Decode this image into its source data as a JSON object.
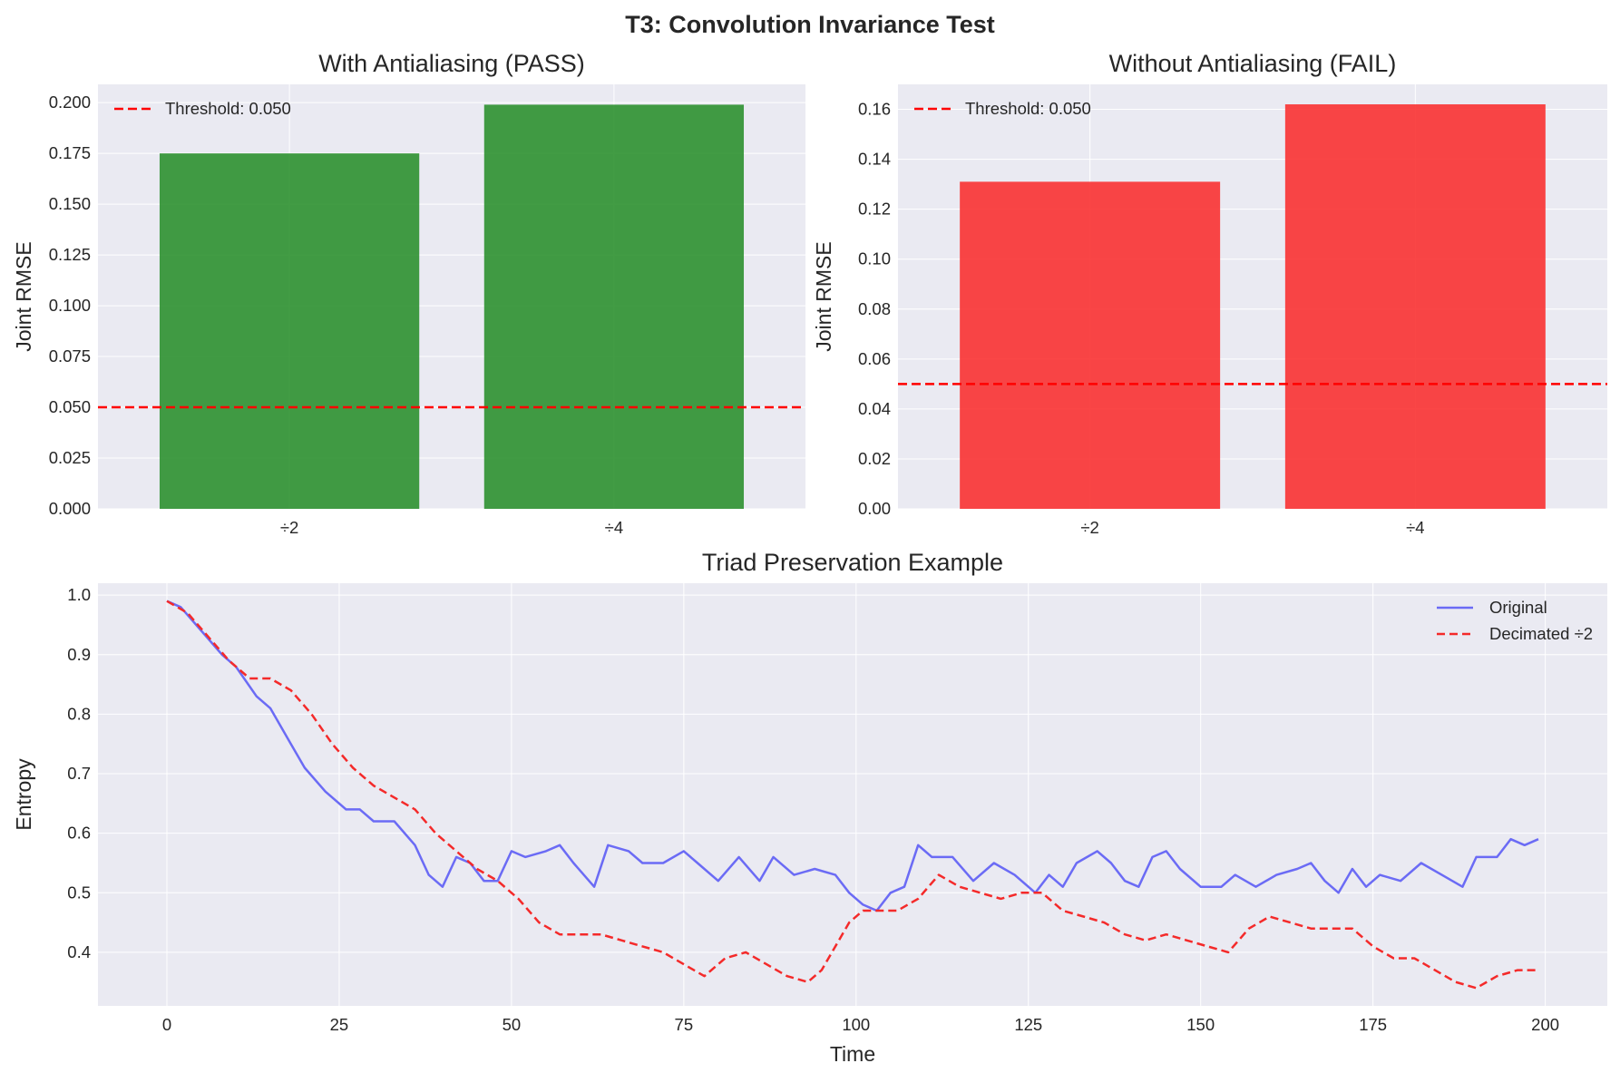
{
  "figure": {
    "suptitle": "T3: Convolution Invariance Test"
  },
  "chart_data": [
    {
      "type": "bar",
      "title": "With Antialiasing (PASS)",
      "xlabel": "",
      "ylabel": "Joint RMSE",
      "categories": [
        "÷2",
        "÷4"
      ],
      "values": [
        0.175,
        0.199
      ],
      "bar_color": "#2e9130",
      "ylim": [
        0,
        0.209
      ],
      "yticks": [
        0.0,
        0.025,
        0.05,
        0.075,
        0.1,
        0.125,
        0.15,
        0.175,
        0.2
      ],
      "ytick_labels": [
        "0.000",
        "0.025",
        "0.050",
        "0.075",
        "0.100",
        "0.125",
        "0.150",
        "0.175",
        "0.200"
      ],
      "threshold": {
        "value": 0.05,
        "label": "Threshold: 0.050",
        "color": "#ff0000"
      },
      "legend_position": "upper-left",
      "grid": true
    },
    {
      "type": "bar",
      "title": "Without Antialiasing (FAIL)",
      "xlabel": "",
      "ylabel": "Joint RMSE",
      "categories": [
        "÷2",
        "÷4"
      ],
      "values": [
        0.131,
        0.162
      ],
      "bar_color": "#f93232",
      "ylim": [
        0,
        0.17
      ],
      "yticks": [
        0.0,
        0.02,
        0.04,
        0.06,
        0.08,
        0.1,
        0.12,
        0.14,
        0.16
      ],
      "ytick_labels": [
        "0.00",
        "0.02",
        "0.04",
        "0.06",
        "0.08",
        "0.10",
        "0.12",
        "0.14",
        "0.16"
      ],
      "threshold": {
        "value": 0.05,
        "label": "Threshold: 0.050",
        "color": "#ff0000"
      },
      "legend_position": "upper-left",
      "grid": true
    },
    {
      "type": "line",
      "title": "Triad Preservation Example",
      "xlabel": "Time",
      "ylabel": "Entropy",
      "xlim": [
        -10,
        209
      ],
      "ylim": [
        0.31,
        1.02
      ],
      "xticks": [
        0,
        25,
        50,
        75,
        100,
        125,
        150,
        175,
        200
      ],
      "yticks": [
        0.4,
        0.5,
        0.6,
        0.7,
        0.8,
        0.9,
        1.0
      ],
      "legend_position": "upper-right",
      "grid": true,
      "series": [
        {
          "name": "Original",
          "color": "#6b6bf5",
          "style": "solid",
          "points": [
            [
              0,
              0.99
            ],
            [
              2,
              0.98
            ],
            [
              5,
              0.94
            ],
            [
              8,
              0.9
            ],
            [
              10,
              0.88
            ],
            [
              13,
              0.83
            ],
            [
              15,
              0.81
            ],
            [
              18,
              0.75
            ],
            [
              20,
              0.71
            ],
            [
              23,
              0.67
            ],
            [
              26,
              0.64
            ],
            [
              28,
              0.64
            ],
            [
              30,
              0.62
            ],
            [
              33,
              0.62
            ],
            [
              36,
              0.58
            ],
            [
              38,
              0.53
            ],
            [
              40,
              0.51
            ],
            [
              42,
              0.56
            ],
            [
              44,
              0.55
            ],
            [
              46,
              0.52
            ],
            [
              48,
              0.52
            ],
            [
              50,
              0.57
            ],
            [
              52,
              0.56
            ],
            [
              55,
              0.57
            ],
            [
              57,
              0.58
            ],
            [
              59,
              0.55
            ],
            [
              62,
              0.51
            ],
            [
              64,
              0.58
            ],
            [
              67,
              0.57
            ],
            [
              69,
              0.55
            ],
            [
              72,
              0.55
            ],
            [
              75,
              0.57
            ],
            [
              77,
              0.55
            ],
            [
              80,
              0.52
            ],
            [
              83,
              0.56
            ],
            [
              86,
              0.52
            ],
            [
              88,
              0.56
            ],
            [
              91,
              0.53
            ],
            [
              94,
              0.54
            ],
            [
              97,
              0.53
            ],
            [
              99,
              0.5
            ],
            [
              101,
              0.48
            ],
            [
              103,
              0.47
            ],
            [
              105,
              0.5
            ],
            [
              107,
              0.51
            ],
            [
              109,
              0.58
            ],
            [
              111,
              0.56
            ],
            [
              114,
              0.56
            ],
            [
              117,
              0.52
            ],
            [
              120,
              0.55
            ],
            [
              123,
              0.53
            ],
            [
              126,
              0.5
            ],
            [
              128,
              0.53
            ],
            [
              130,
              0.51
            ],
            [
              132,
              0.55
            ],
            [
              135,
              0.57
            ],
            [
              137,
              0.55
            ],
            [
              139,
              0.52
            ],
            [
              141,
              0.51
            ],
            [
              143,
              0.56
            ],
            [
              145,
              0.57
            ],
            [
              147,
              0.54
            ],
            [
              150,
              0.51
            ],
            [
              153,
              0.51
            ],
            [
              155,
              0.53
            ],
            [
              158,
              0.51
            ],
            [
              161,
              0.53
            ],
            [
              164,
              0.54
            ],
            [
              166,
              0.55
            ],
            [
              168,
              0.52
            ],
            [
              170,
              0.5
            ],
            [
              172,
              0.54
            ],
            [
              174,
              0.51
            ],
            [
              176,
              0.53
            ],
            [
              179,
              0.52
            ],
            [
              182,
              0.55
            ],
            [
              185,
              0.53
            ],
            [
              188,
              0.51
            ],
            [
              190,
              0.56
            ],
            [
              193,
              0.56
            ],
            [
              195,
              0.59
            ],
            [
              197,
              0.58
            ],
            [
              199,
              0.59
            ]
          ]
        },
        {
          "name": "Decimated ÷2",
          "color": "#f42a2a",
          "style": "dashed",
          "points": [
            [
              0,
              0.99
            ],
            [
              3,
              0.97
            ],
            [
              6,
              0.93
            ],
            [
              9,
              0.89
            ],
            [
              12,
              0.86
            ],
            [
              15,
              0.86
            ],
            [
              18,
              0.84
            ],
            [
              21,
              0.8
            ],
            [
              24,
              0.75
            ],
            [
              27,
              0.71
            ],
            [
              30,
              0.68
            ],
            [
              33,
              0.66
            ],
            [
              36,
              0.64
            ],
            [
              39,
              0.6
            ],
            [
              42,
              0.57
            ],
            [
              45,
              0.54
            ],
            [
              48,
              0.52
            ],
            [
              51,
              0.49
            ],
            [
              54,
              0.45
            ],
            [
              57,
              0.43
            ],
            [
              60,
              0.43
            ],
            [
              63,
              0.43
            ],
            [
              66,
              0.42
            ],
            [
              69,
              0.41
            ],
            [
              72,
              0.4
            ],
            [
              75,
              0.38
            ],
            [
              78,
              0.36
            ],
            [
              81,
              0.39
            ],
            [
              84,
              0.4
            ],
            [
              87,
              0.38
            ],
            [
              90,
              0.36
            ],
            [
              93,
              0.35
            ],
            [
              95,
              0.37
            ],
            [
              97,
              0.41
            ],
            [
              99,
              0.45
            ],
            [
              101,
              0.47
            ],
            [
              103,
              0.47
            ],
            [
              106,
              0.47
            ],
            [
              109,
              0.49
            ],
            [
              112,
              0.53
            ],
            [
              115,
              0.51
            ],
            [
              118,
              0.5
            ],
            [
              121,
              0.49
            ],
            [
              124,
              0.5
            ],
            [
              127,
              0.5
            ],
            [
              130,
              0.47
            ],
            [
              133,
              0.46
            ],
            [
              136,
              0.45
            ],
            [
              139,
              0.43
            ],
            [
              142,
              0.42
            ],
            [
              145,
              0.43
            ],
            [
              148,
              0.42
            ],
            [
              151,
              0.41
            ],
            [
              154,
              0.4
            ],
            [
              157,
              0.44
            ],
            [
              160,
              0.46
            ],
            [
              163,
              0.45
            ],
            [
              166,
              0.44
            ],
            [
              169,
              0.44
            ],
            [
              172,
              0.44
            ],
            [
              175,
              0.41
            ],
            [
              178,
              0.39
            ],
            [
              181,
              0.39
            ],
            [
              184,
              0.37
            ],
            [
              187,
              0.35
            ],
            [
              190,
              0.34
            ],
            [
              193,
              0.36
            ],
            [
              196,
              0.37
            ],
            [
              199,
              0.37
            ]
          ]
        }
      ]
    }
  ]
}
